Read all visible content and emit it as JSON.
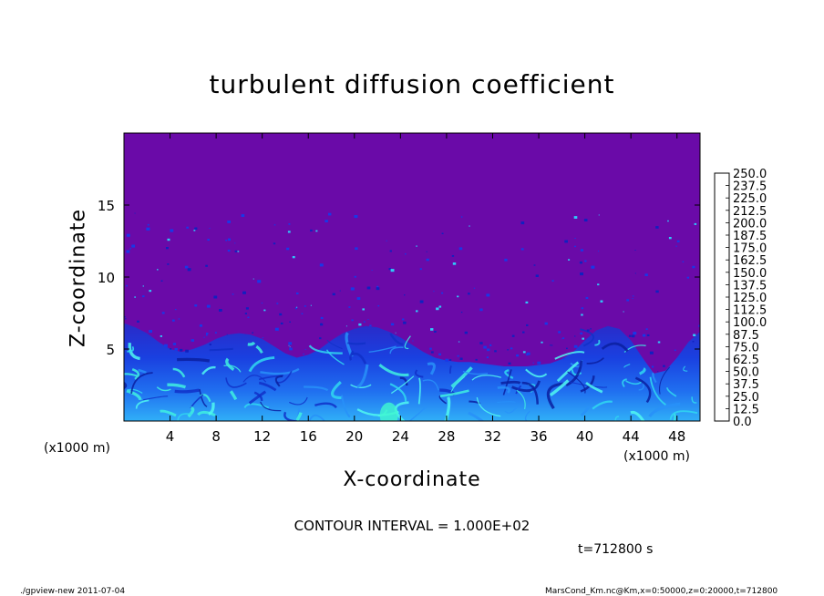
{
  "chart_data": {
    "type": "heatmap",
    "title": "turbulent diffusion coefficient",
    "xlabel": "X-coordinate",
    "ylabel": "Z-coordinate",
    "x_unit_left": "(x1000 m)",
    "x_unit_right": "(x1000 m)",
    "xlim": [
      0,
      50
    ],
    "ylim": [
      0,
      20
    ],
    "x_ticks": [
      "4",
      "8",
      "12",
      "16",
      "20",
      "24",
      "28",
      "32",
      "36",
      "40",
      "44",
      "48"
    ],
    "x_tick_values": [
      4,
      8,
      12,
      16,
      20,
      24,
      28,
      32,
      36,
      40,
      44,
      48
    ],
    "y_ticks": [
      "5",
      "10",
      "15"
    ],
    "y_tick_values": [
      5,
      10,
      15
    ],
    "colorbar_labels": [
      "0.0",
      "12.5",
      "25.0",
      "37.5",
      "50.0",
      "62.5",
      "75.0",
      "87.5",
      "100.0",
      "112.5",
      "125.0",
      "137.5",
      "150.0",
      "162.5",
      "175.0",
      "187.5",
      "200.0",
      "212.5",
      "225.0",
      "237.5",
      "250.0"
    ],
    "colorbar_colors": [
      "#6a0aa8",
      "#2a10b8",
      "#1020d0",
      "#1838e8",
      "#2060f0",
      "#2890f8",
      "#30b8f8",
      "#30e0f0",
      "#30f0c0",
      "#20e090",
      "#20d860",
      "#30e040",
      "#60e828",
      "#a0f020",
      "#e0f020",
      "#f8d010",
      "#f8a010",
      "#f87010",
      "#f04020",
      "#f06060",
      "#f8a0a0"
    ],
    "contour_interval": "CONTOUR INTERVAL = 1.000E+02",
    "time_label": "t=712800 s",
    "footer_left": "./gpview-new   2011-07-04",
    "footer_right": "MarsCond_Km.nc@Km,x=0:50000,z=0:20000,t=712800",
    "background_color": "#6a0aa8",
    "upper_boundary_depth": [
      6.8,
      6.5,
      6.1,
      5.5,
      5.0,
      4.8,
      5.0,
      5.3,
      5.7,
      6.0,
      6.1,
      6.0,
      5.7,
      5.2,
      4.7,
      4.4,
      4.6,
      5.0,
      5.6,
      6.1,
      6.4,
      6.6,
      6.5,
      6.2,
      5.8,
      5.3,
      4.8,
      4.4,
      4.2,
      4.1,
      4.1,
      4.0,
      3.9,
      3.8,
      3.8,
      3.8,
      3.9,
      4.0,
      4.3,
      4.8,
      5.6,
      6.3,
      6.6,
      6.4,
      5.6,
      4.4,
      3.3,
      3.5,
      4.4,
      5.5,
      6.2
    ]
  }
}
